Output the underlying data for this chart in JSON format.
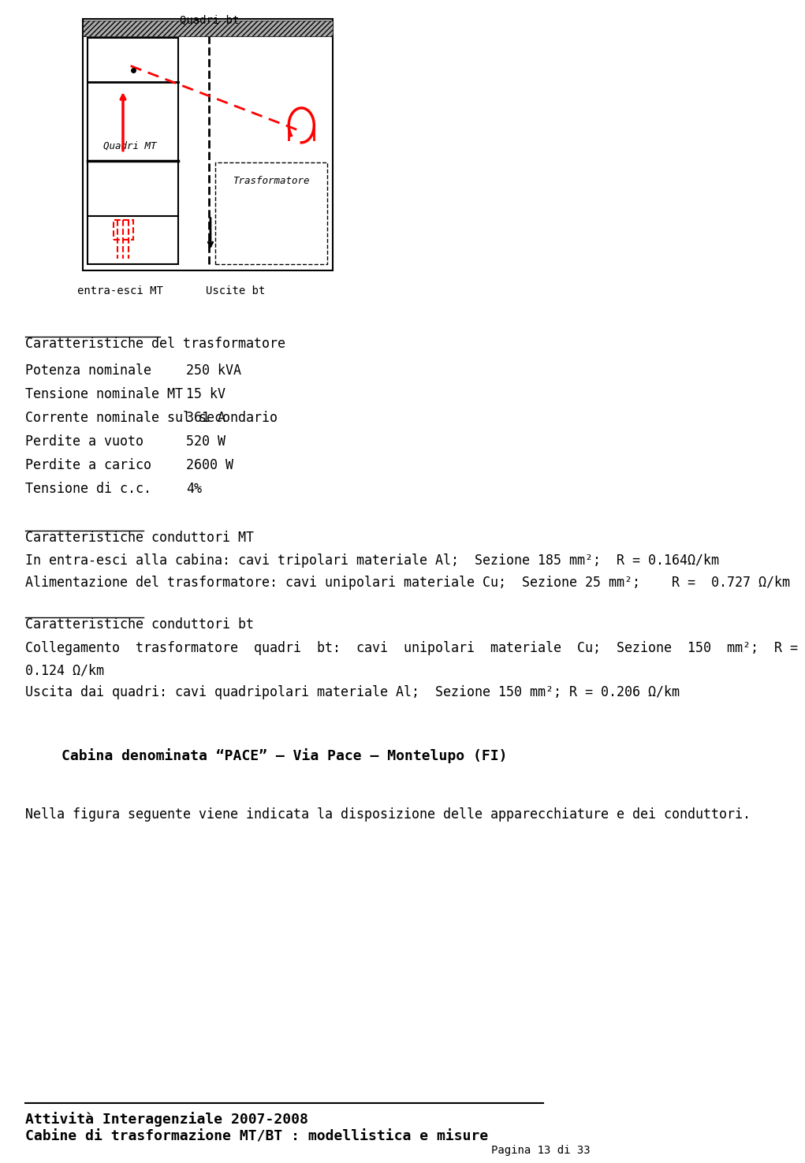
{
  "bg_color": "#ffffff",
  "image_placeholder": {
    "label_top": "Quadri bt",
    "label_quadri_mt": "Quadri MT",
    "label_trasformatore": "Trasformatore",
    "label_entra_esci": "entra-esci MT",
    "label_uscite_bt": "Uscite bt"
  },
  "section1_title": "Caratteristiche del trasformatore",
  "section1_rows": [
    [
      "Potenza nominale",
      "250 kVA"
    ],
    [
      "Tensione nominale MT",
      "15 kV"
    ],
    [
      "Corrente nominale sul secondario",
      "361 A"
    ],
    [
      "Perdite a vuoto",
      "520 W"
    ],
    [
      "Perdite a carico",
      "2600 W"
    ],
    [
      "Tensione di c.c.",
      "4%"
    ]
  ],
  "section2_title": "Caratteristiche conduttori MT",
  "section2_lines": [
    "In entra-esci alla cabina: cavi tripolari materiale Al;  Sezione 185 mm²;  R = 0.164Ω/km",
    "Alimentazione del trasformatore: cavi unipolari materiale Cu;  Sezione 25 mm²;    R =  0.727 Ω/km"
  ],
  "section3_title": "Caratteristiche conduttori bt",
  "section3_lines": [
    "Collegamento  trasformatore  quadri  bt:  cavi  unipolari  materiale  Cu;  Sezione  150  mm²;  R =",
    "0.124 Ω/km",
    "Uscita dai quadri: cavi quadripolari materiale Al;  Sezione 150 mm²; R = 0.206 Ω/km"
  ],
  "center_title": "Cabina denominata “PACE” – Via Pace – Montelupo (FI)",
  "closing_line": "Nella figura seguente viene indicata la disposizione delle apparecchiature e dei conduttori.",
  "footer_line1": "Attività Interagenziale 2007-2008",
  "footer_line2": "Cabine di trasformazione MT/BT : modellistica e misure",
  "footer_page": "Pagina 13 di 33"
}
